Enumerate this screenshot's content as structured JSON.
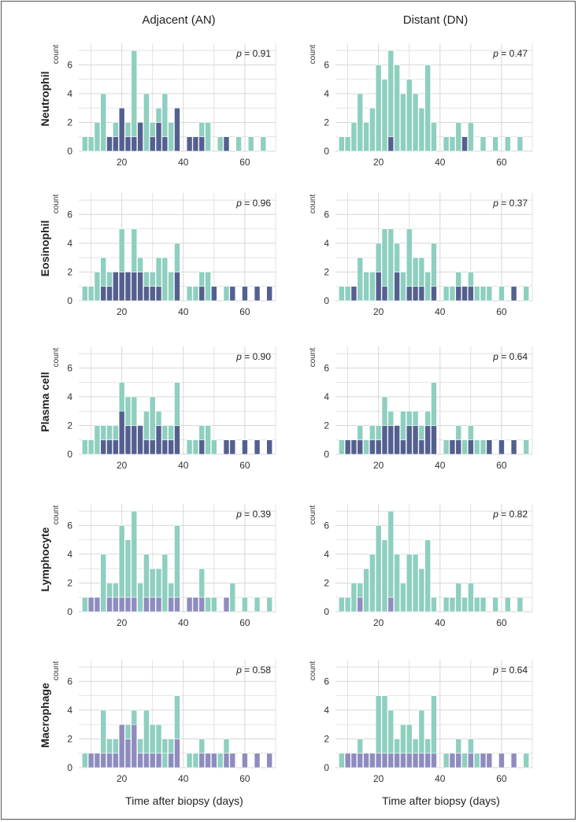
{
  "column_titles": [
    "Adjacent (AN)",
    "Distant (DN)"
  ],
  "x_label": "Time after biopsy (days)",
  "count_label": "count",
  "p_prefix": "p",
  "colors": {
    "teal": "#8ecfbf",
    "purple": "#8e8cbf",
    "dark": "#53608f",
    "grid": "#d6d6d6"
  },
  "chart_data": {
    "type": "bar",
    "bin_starts": [
      7,
      9,
      11,
      13,
      15,
      17,
      19,
      21,
      23,
      25,
      27,
      29,
      31,
      33,
      35,
      37,
      39,
      41,
      43,
      45,
      47,
      49,
      51,
      53,
      55,
      57,
      59,
      61,
      63,
      65,
      67
    ],
    "xlim": [
      6,
      70
    ],
    "ylim": [
      0,
      7.5
    ],
    "x_ticks": [
      20,
      40,
      60
    ],
    "y_ticks": [
      0,
      2,
      4,
      6
    ],
    "panels": [
      {
        "row": "Neutrophil",
        "column": "Adjacent (AN)",
        "p_value": "0.91",
        "total": [
          1,
          1,
          2,
          4,
          1,
          2,
          3,
          2,
          7,
          2,
          4,
          2,
          3,
          4,
          2,
          3,
          0,
          1,
          1,
          2,
          2,
          0,
          1,
          1,
          0,
          1,
          0,
          1,
          0,
          1,
          0
        ],
        "overlap": [
          0,
          0,
          0,
          0,
          1,
          1,
          3,
          1,
          1,
          2,
          0,
          1,
          2,
          1,
          0,
          3,
          0,
          1,
          1,
          1,
          0,
          0,
          0,
          1,
          0,
          0,
          0,
          0,
          0,
          0,
          0
        ],
        "overlap_fill": "#53608f",
        "excess_fill": "#8ecfbf"
      },
      {
        "row": "Neutrophil",
        "column": "Distant (DN)",
        "p_value": "0.47",
        "total": [
          1,
          1,
          2,
          4,
          2,
          3,
          6,
          5,
          7,
          6,
          4,
          5,
          4,
          3,
          6,
          2,
          0,
          1,
          1,
          2,
          1,
          2,
          0,
          1,
          0,
          1,
          0,
          1,
          0,
          1,
          0
        ],
        "overlap": [
          0,
          0,
          0,
          0,
          0,
          0,
          0,
          0,
          1,
          0,
          0,
          0,
          0,
          0,
          0,
          0,
          0,
          0,
          0,
          0,
          1,
          0,
          0,
          0,
          0,
          0,
          0,
          0,
          0,
          0,
          0
        ],
        "overlap_fill": "#53608f",
        "excess_fill": "#8ecfbf"
      },
      {
        "row": "Eosinophil",
        "column": "Adjacent (AN)",
        "p_value": "0.96",
        "total": [
          1,
          1,
          2,
          3,
          2,
          2,
          5,
          2,
          5,
          3,
          2,
          2,
          3,
          3,
          2,
          4,
          0,
          1,
          1,
          2,
          2,
          1,
          0,
          1,
          1,
          0,
          1,
          0,
          1,
          0,
          1
        ],
        "overlap": [
          0,
          0,
          0,
          1,
          1,
          2,
          2,
          2,
          2,
          2,
          1,
          1,
          1,
          0,
          0,
          2,
          0,
          0,
          0,
          1,
          0,
          1,
          0,
          0,
          1,
          0,
          1,
          0,
          1,
          0,
          1
        ],
        "overlap_fill": "#53608f",
        "excess_fill": "#8ecfbf"
      },
      {
        "row": "Eosinophil",
        "column": "Distant (DN)",
        "p_value": "0.37",
        "total": [
          1,
          1,
          1,
          3,
          2,
          2,
          4,
          5,
          5,
          4,
          2,
          5,
          3,
          3,
          2,
          4,
          0,
          1,
          1,
          2,
          1,
          2,
          1,
          1,
          1,
          0,
          1,
          0,
          1,
          0,
          1
        ],
        "overlap": [
          0,
          0,
          1,
          0,
          0,
          0,
          2,
          1,
          0,
          2,
          0,
          1,
          1,
          1,
          0,
          1,
          0,
          0,
          0,
          1,
          1,
          1,
          0,
          0,
          0,
          0,
          0,
          0,
          1,
          0,
          0
        ],
        "overlap_fill": "#53608f",
        "excess_fill": "#8ecfbf"
      },
      {
        "row": "Plasma cell",
        "column": "Adjacent (AN)",
        "p_value": "0.90",
        "total": [
          1,
          1,
          2,
          2,
          2,
          2,
          5,
          4,
          4,
          2,
          3,
          4,
          3,
          2,
          2,
          5,
          0,
          1,
          1,
          2,
          2,
          1,
          0,
          1,
          1,
          0,
          1,
          0,
          1,
          0,
          1
        ],
        "overlap": [
          0,
          0,
          0,
          1,
          1,
          1,
          3,
          2,
          2,
          2,
          1,
          1,
          2,
          1,
          1,
          2,
          0,
          0,
          0,
          1,
          0,
          0,
          0,
          1,
          1,
          0,
          1,
          0,
          1,
          0,
          1
        ],
        "overlap_fill": "#53608f",
        "excess_fill": "#8ecfbf"
      },
      {
        "row": "Plasma cell",
        "column": "Distant (DN)",
        "p_value": "0.64",
        "total": [
          1,
          1,
          1,
          2,
          1,
          2,
          2,
          4,
          3,
          2,
          3,
          3,
          3,
          2,
          3,
          5,
          0,
          1,
          1,
          2,
          1,
          2,
          1,
          1,
          1,
          0,
          1,
          0,
          1,
          0,
          1
        ],
        "overlap": [
          0,
          1,
          1,
          1,
          0,
          1,
          1,
          2,
          2,
          2,
          1,
          2,
          2,
          1,
          2,
          2,
          0,
          0,
          1,
          1,
          0,
          1,
          0,
          0,
          1,
          0,
          1,
          0,
          1,
          0,
          0
        ],
        "overlap_fill": "#53608f",
        "excess_fill": "#8ecfbf"
      },
      {
        "row": "Lymphocyte",
        "column": "Adjacent (AN)",
        "p_value": "0.39",
        "total": [
          1,
          1,
          1,
          4,
          2,
          2,
          6,
          5,
          7,
          2,
          4,
          3,
          3,
          4,
          2,
          6,
          0,
          1,
          1,
          3,
          1,
          1,
          0,
          1,
          2,
          0,
          1,
          0,
          1,
          0,
          1
        ],
        "overlap": [
          0,
          1,
          1,
          0,
          1,
          1,
          1,
          1,
          1,
          0,
          1,
          1,
          1,
          0,
          1,
          1,
          0,
          1,
          1,
          1,
          0,
          0,
          0,
          1,
          0,
          0,
          0,
          0,
          0,
          0,
          0
        ],
        "overlap_fill": "#8e8cbf",
        "excess_fill": "#8ecfbf",
        "teal_bins": [
          0
        ]
      },
      {
        "row": "Lymphocyte",
        "column": "Distant (DN)",
        "p_value": "0.82",
        "total": [
          1,
          1,
          2,
          2,
          3,
          4,
          6,
          5,
          7,
          4,
          2,
          4,
          4,
          3,
          5,
          1,
          0,
          1,
          1,
          2,
          1,
          2,
          1,
          1,
          0,
          1,
          0,
          1,
          0,
          1,
          0
        ],
        "overlap": [
          0,
          0,
          0,
          1,
          0,
          0,
          0,
          0,
          1,
          0,
          0,
          0,
          0,
          0,
          0,
          0,
          0,
          0,
          0,
          0,
          0,
          0,
          0,
          0,
          0,
          0,
          0,
          0,
          0,
          0,
          0
        ],
        "overlap_fill": "#8e8cbf",
        "excess_fill": "#8ecfbf"
      },
      {
        "row": "Macrophage",
        "column": "Adjacent (AN)",
        "p_value": "0.58",
        "total": [
          1,
          1,
          1,
          4,
          2,
          2,
          3,
          3,
          4,
          2,
          4,
          3,
          3,
          2,
          2,
          5,
          0,
          1,
          1,
          2,
          1,
          1,
          1,
          2,
          1,
          0,
          1,
          0,
          1,
          0,
          1
        ],
        "overlap": [
          0,
          1,
          1,
          1,
          1,
          1,
          3,
          2,
          3,
          1,
          1,
          1,
          1,
          1,
          1,
          2,
          0,
          0,
          0,
          1,
          1,
          1,
          0,
          1,
          1,
          0,
          1,
          0,
          1,
          0,
          1
        ],
        "overlap_fill": "#8e8cbf",
        "excess_fill": "#8ecfbf",
        "teal_bins": [
          13
        ]
      },
      {
        "row": "Macrophage",
        "column": "Distant (DN)",
        "p_value": "0.64",
        "total": [
          1,
          1,
          1,
          2,
          1,
          1,
          5,
          5,
          4,
          2,
          3,
          3,
          2,
          4,
          2,
          5,
          0,
          1,
          1,
          2,
          1,
          2,
          1,
          1,
          1,
          0,
          1,
          0,
          1,
          0,
          1
        ],
        "overlap": [
          0,
          1,
          1,
          1,
          1,
          1,
          1,
          1,
          1,
          1,
          1,
          1,
          1,
          1,
          1,
          1,
          0,
          0,
          1,
          1,
          0,
          1,
          0,
          1,
          1,
          0,
          1,
          0,
          1,
          0,
          0
        ],
        "overlap_fill": "#8e8cbf",
        "excess_fill": "#8ecfbf",
        "teal_bins": [
          0,
          29
        ]
      }
    ]
  }
}
